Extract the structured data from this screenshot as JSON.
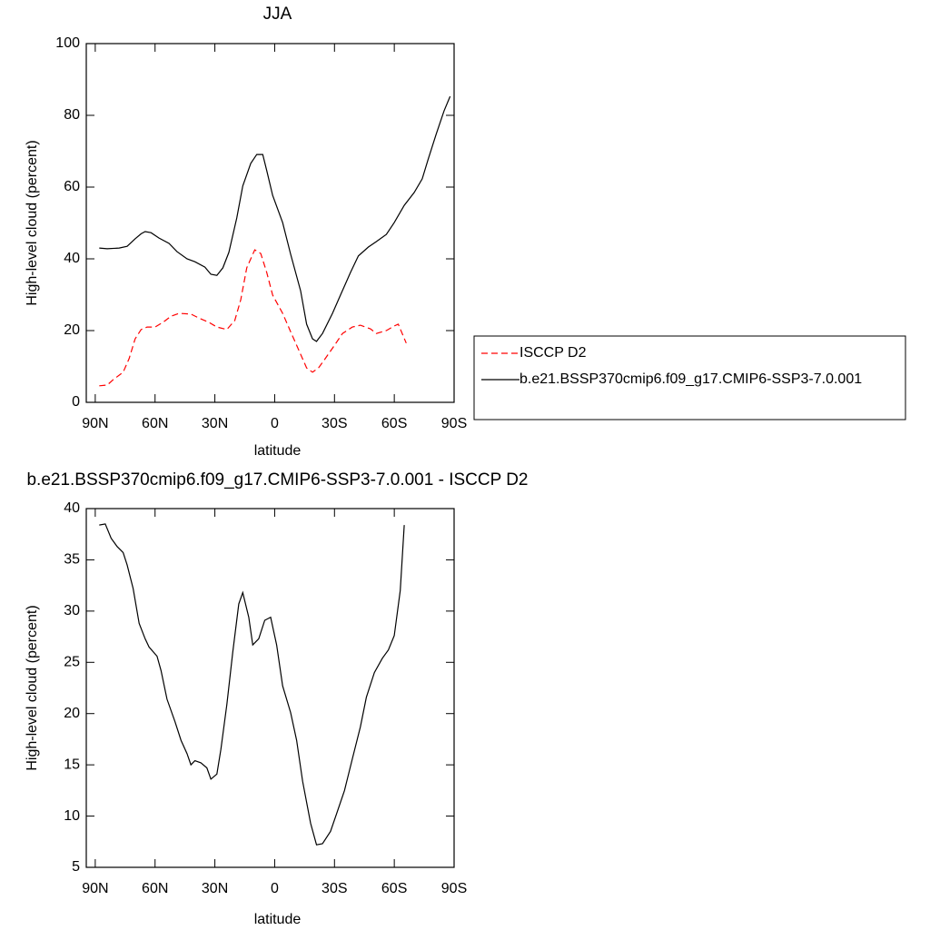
{
  "chart_data": [
    {
      "type": "line",
      "title": "JJA",
      "xlabel": "latitude",
      "ylabel": "High-level cloud (percent)",
      "xlim": [
        94.5,
        -90
      ],
      "ylim": [
        0,
        100
      ],
      "xticks": [
        {
          "value": 90,
          "label": "90N"
        },
        {
          "value": 60,
          "label": "60N"
        },
        {
          "value": 30,
          "label": "30N"
        },
        0,
        {
          "value": -30,
          "label": "30S"
        },
        {
          "value": -60,
          "label": "60S"
        },
        {
          "value": -90,
          "label": "90S"
        }
      ],
      "yticks": [
        0,
        20,
        40,
        60,
        80,
        100
      ],
      "legend": "right",
      "series": [
        {
          "name": "ISCCP D2",
          "color": "#ff0000",
          "dashed": true,
          "x": [
            88,
            84,
            81,
            76,
            73,
            70,
            67,
            64,
            60,
            56,
            52,
            48,
            42,
            38,
            33,
            29,
            24,
            20,
            17,
            14,
            10,
            7,
            4,
            1,
            -4,
            -8,
            -13,
            -16,
            -19,
            -22,
            -25,
            -30,
            -34,
            -39,
            -43,
            -48,
            -51,
            -56,
            -60,
            -62,
            -66
          ],
          "values": [
            4.6,
            4.8,
            6.3,
            8.4,
            12.2,
            17.7,
            20.3,
            21,
            21,
            22.3,
            24,
            24.8,
            24.6,
            23.5,
            22.3,
            21,
            20.3,
            22.8,
            28.6,
            37.5,
            42.5,
            41.5,
            36.2,
            29.9,
            24.8,
            19.7,
            13.4,
            9.6,
            8.4,
            9.6,
            11.9,
            15.9,
            19.2,
            21,
            21.5,
            20.5,
            19.2,
            20,
            21.3,
            21.8,
            16.5
          ]
        },
        {
          "name": "b.e21.BSSP370cmip6.f09_g17.CMIP6-SSP3-7.0.001",
          "color": "#000000",
          "dashed": false,
          "x": [
            88,
            84,
            78,
            74,
            70,
            67,
            65,
            62,
            58,
            53,
            49,
            44,
            40,
            35,
            32,
            29,
            26,
            23,
            19,
            16,
            12,
            9,
            6,
            4,
            1,
            -4,
            -8,
            -13,
            -16,
            -19,
            -21,
            -24,
            -29,
            -33,
            -38,
            -42,
            -47,
            -51,
            -56,
            -60,
            -65,
            -70,
            -74,
            -77,
            -81,
            -85,
            -88
          ],
          "values": [
            43,
            42.8,
            43,
            43.5,
            45.6,
            47,
            47.6,
            47.3,
            45.8,
            44.3,
            42,
            40,
            39.2,
            37.7,
            35.7,
            35.4,
            37.5,
            41.8,
            51.4,
            60.3,
            66.6,
            69.1,
            69.1,
            64.6,
            57.7,
            50.1,
            41.3,
            31.1,
            21.8,
            17.7,
            17,
            19.2,
            24.8,
            29.9,
            36.2,
            40.8,
            43.3,
            44.8,
            46.8,
            50.1,
            54.9,
            58.5,
            62.3,
            67.8,
            74.7,
            81.3,
            85.3
          ]
        }
      ]
    },
    {
      "type": "line",
      "title": "b.e21.BSSP370cmip6.f09_g17.CMIP6-SSP3-7.0.001 - ISCCP D2",
      "xlabel": "latitude",
      "ylabel": "High-level cloud (percent)",
      "xlim": [
        94.5,
        -90
      ],
      "ylim": [
        5,
        40
      ],
      "xticks": [
        {
          "value": 90,
          "label": "90N"
        },
        {
          "value": 60,
          "label": "60N"
        },
        {
          "value": 30,
          "label": "30N"
        },
        0,
        {
          "value": -30,
          "label": "30S"
        },
        {
          "value": -60,
          "label": "60S"
        },
        {
          "value": -90,
          "label": "90S"
        }
      ],
      "yticks": [
        5,
        10,
        15,
        20,
        25,
        30,
        35,
        40
      ],
      "series": [
        {
          "color": "#000000",
          "dashed": false,
          "x": [
            88,
            85,
            82,
            79,
            76,
            74,
            71,
            68,
            65,
            63,
            59,
            57,
            54,
            50,
            47,
            44,
            42,
            40,
            37,
            34,
            32,
            29,
            27,
            24,
            21,
            18,
            16,
            13,
            11,
            8,
            5,
            2,
            -1,
            -4,
            -8,
            -11,
            -14,
            -18,
            -21,
            -24,
            -28,
            -31,
            -35,
            -39,
            -43,
            -46,
            -50,
            -54,
            -57,
            -60,
            -63,
            -65
          ],
          "values": [
            38.4,
            38.5,
            37.1,
            36.3,
            35.7,
            34.5,
            32.2,
            28.8,
            27.3,
            26.5,
            25.6,
            24.2,
            21.4,
            19.2,
            17.4,
            16.1,
            15,
            15.4,
            15.2,
            14.7,
            13.6,
            14.1,
            16.5,
            20.9,
            26,
            30.7,
            31.8,
            29.4,
            26.7,
            27.3,
            29.1,
            29.4,
            26.7,
            22.7,
            20.1,
            17.4,
            13.4,
            9.3,
            7.2,
            7.3,
            8.5,
            10.2,
            12.5,
            15.6,
            18.7,
            21.6,
            24,
            25.4,
            26.2,
            27.6,
            32,
            38.4
          ]
        }
      ]
    }
  ]
}
